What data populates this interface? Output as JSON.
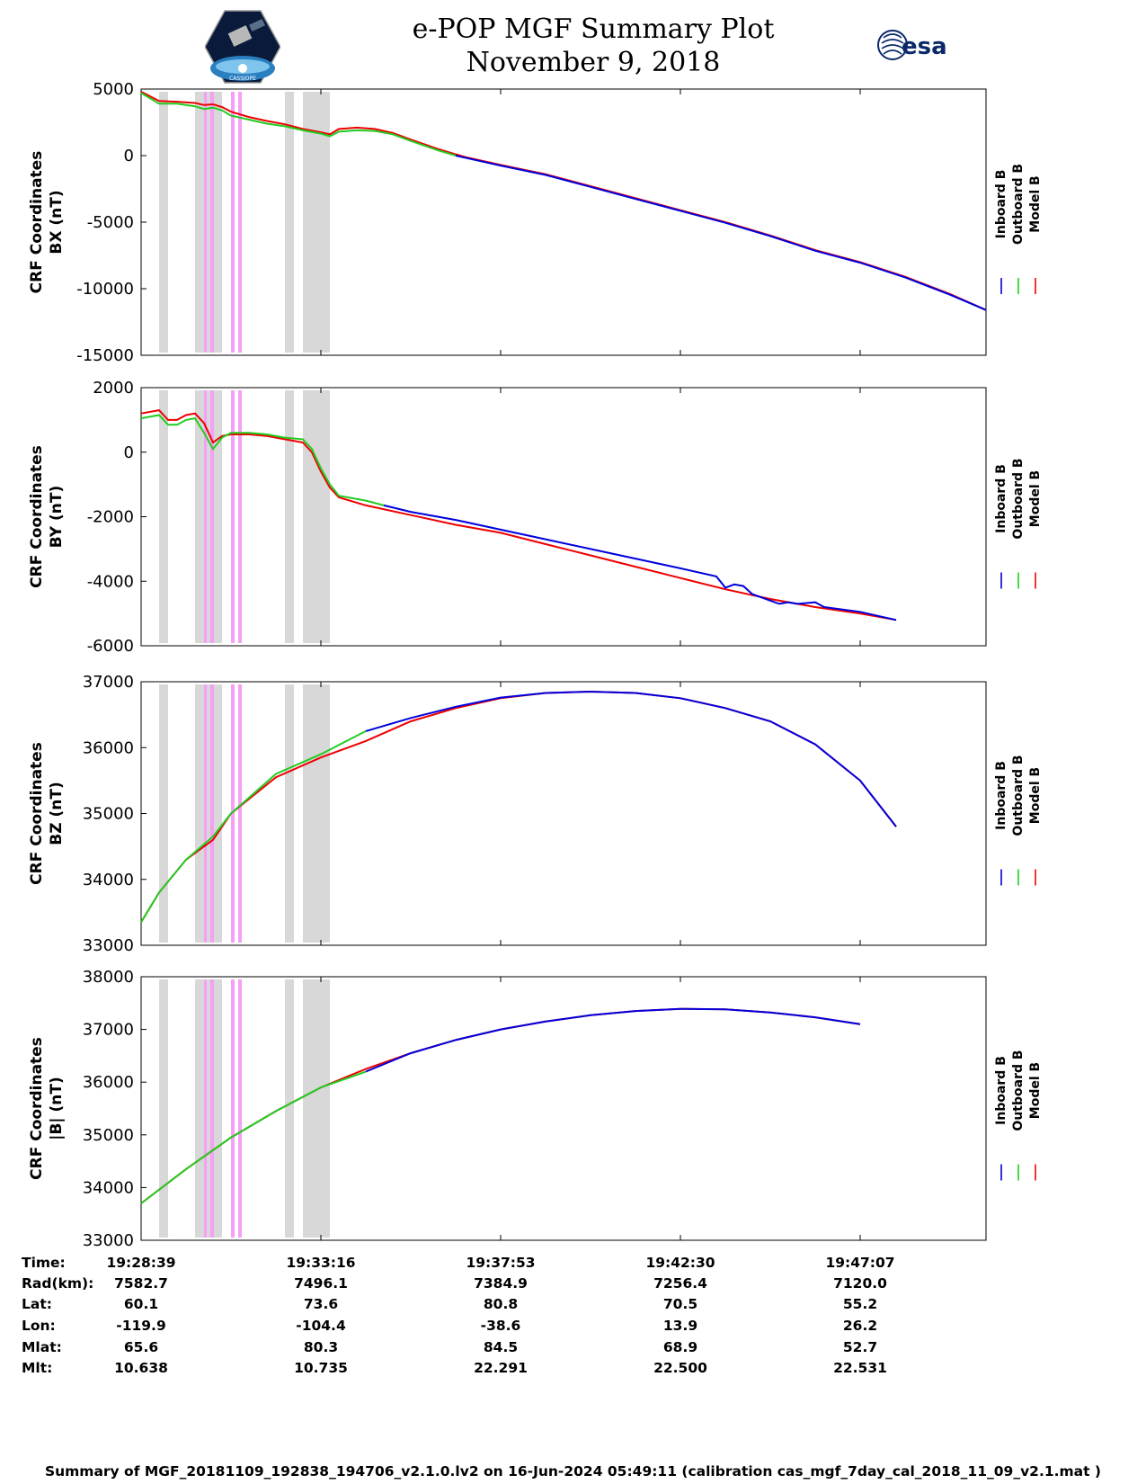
{
  "title": "e-POP MGF Summary Plot",
  "date": "November 9, 2018",
  "logo_right_text": "esa",
  "logo_left_text": "CASSIOPE",
  "colors": {
    "inboard": "#0000dd",
    "outboard": "#22cc22",
    "model": "#ee0000",
    "gap": "#d8d8d8",
    "flag": "#f5a0f5"
  },
  "chart_data": [
    {
      "type": "line",
      "ylabel": [
        "CRF Coordinates",
        "BX (nT)"
      ],
      "ylim": [
        -15000,
        5000
      ],
      "yticks": [
        5000,
        0,
        -5000,
        -10000,
        -15000
      ],
      "legend": [
        "Inboard B",
        "Outboard B",
        "Model B"
      ],
      "series": [
        {
          "name": "Model B",
          "color": "#ee0000",
          "points": [
            [
              0,
              4800
            ],
            [
              0.02,
              4100
            ],
            [
              0.04,
              4050
            ],
            [
              0.06,
              3950
            ],
            [
              0.07,
              3800
            ],
            [
              0.08,
              3850
            ],
            [
              0.09,
              3650
            ],
            [
              0.1,
              3300
            ],
            [
              0.12,
              2900
            ],
            [
              0.14,
              2600
            ],
            [
              0.16,
              2350
            ],
            [
              0.18,
              2000
            ],
            [
              0.2,
              1750
            ],
            [
              0.21,
              1600
            ],
            [
              0.22,
              2000
            ],
            [
              0.24,
              2100
            ],
            [
              0.26,
              2000
            ],
            [
              0.28,
              1700
            ],
            [
              0.3,
              1200
            ],
            [
              0.33,
              500
            ],
            [
              0.36,
              -100
            ],
            [
              0.4,
              -700
            ],
            [
              0.45,
              -1400
            ],
            [
              0.5,
              -2300
            ],
            [
              0.55,
              -3200
            ],
            [
              0.6,
              -4100
            ],
            [
              0.65,
              -5000
            ],
            [
              0.7,
              -6000
            ],
            [
              0.75,
              -7100
            ],
            [
              0.8,
              -8000
            ],
            [
              0.85,
              -9100
            ],
            [
              0.9,
              -10400
            ],
            [
              0.94,
              -11600
            ]
          ]
        },
        {
          "name": "Outboard B",
          "color": "#22cc22",
          "points": [
            [
              0,
              4700
            ],
            [
              0.02,
              3900
            ],
            [
              0.04,
              3900
            ],
            [
              0.06,
              3700
            ],
            [
              0.07,
              3500
            ],
            [
              0.08,
              3600
            ],
            [
              0.09,
              3400
            ],
            [
              0.1,
              3000
            ],
            [
              0.12,
              2700
            ],
            [
              0.14,
              2400
            ],
            [
              0.16,
              2200
            ],
            [
              0.18,
              1900
            ],
            [
              0.2,
              1650
            ],
            [
              0.21,
              1450
            ],
            [
              0.22,
              1800
            ],
            [
              0.24,
              1900
            ],
            [
              0.26,
              1850
            ],
            [
              0.28,
              1600
            ],
            [
              0.3,
              1100
            ],
            [
              0.33,
              400
            ],
            [
              0.35,
              0
            ]
          ]
        },
        {
          "name": "Inboard B",
          "color": "#0000dd",
          "points": [
            [
              0.35,
              0
            ],
            [
              0.4,
              -750
            ],
            [
              0.45,
              -1450
            ],
            [
              0.5,
              -2350
            ],
            [
              0.55,
              -3250
            ],
            [
              0.6,
              -4150
            ],
            [
              0.65,
              -5050
            ],
            [
              0.7,
              -6050
            ],
            [
              0.75,
              -7150
            ],
            [
              0.8,
              -8050
            ],
            [
              0.85,
              -9150
            ],
            [
              0.9,
              -10450
            ],
            [
              0.94,
              -11600
            ]
          ]
        }
      ]
    },
    {
      "type": "line",
      "ylabel": [
        "CRF Coordinates",
        "BY (nT)"
      ],
      "ylim": [
        -6000,
        2000
      ],
      "yticks": [
        2000,
        0,
        -2000,
        -4000,
        -6000
      ],
      "legend": [
        "Inboard B",
        "Outboard B",
        "Model B"
      ],
      "series": [
        {
          "name": "Model B",
          "color": "#ee0000",
          "points": [
            [
              0,
              1200
            ],
            [
              0.02,
              1300
            ],
            [
              0.03,
              1000
            ],
            [
              0.04,
              1000
            ],
            [
              0.05,
              1150
            ],
            [
              0.06,
              1200
            ],
            [
              0.07,
              900
            ],
            [
              0.08,
              300
            ],
            [
              0.09,
              500
            ],
            [
              0.1,
              550
            ],
            [
              0.12,
              550
            ],
            [
              0.14,
              500
            ],
            [
              0.16,
              400
            ],
            [
              0.18,
              300
            ],
            [
              0.19,
              0
            ],
            [
              0.2,
              -600
            ],
            [
              0.21,
              -1100
            ],
            [
              0.22,
              -1400
            ],
            [
              0.25,
              -1650
            ],
            [
              0.3,
              -1950
            ],
            [
              0.35,
              -2250
            ],
            [
              0.4,
              -2500
            ],
            [
              0.45,
              -2850
            ],
            [
              0.5,
              -3200
            ],
            [
              0.55,
              -3550
            ],
            [
              0.6,
              -3900
            ],
            [
              0.65,
              -4250
            ],
            [
              0.7,
              -4550
            ],
            [
              0.75,
              -4800
            ],
            [
              0.8,
              -5000
            ],
            [
              0.84,
              -5200
            ]
          ]
        },
        {
          "name": "Outboard B",
          "color": "#22cc22",
          "points": [
            [
              0,
              1050
            ],
            [
              0.02,
              1150
            ],
            [
              0.03,
              850
            ],
            [
              0.04,
              850
            ],
            [
              0.05,
              1000
            ],
            [
              0.06,
              1050
            ],
            [
              0.07,
              600
            ],
            [
              0.08,
              100
            ],
            [
              0.09,
              450
            ],
            [
              0.1,
              600
            ],
            [
              0.12,
              600
            ],
            [
              0.14,
              550
            ],
            [
              0.16,
              450
            ],
            [
              0.18,
              400
            ],
            [
              0.19,
              100
            ],
            [
              0.2,
              -500
            ],
            [
              0.21,
              -1000
            ],
            [
              0.22,
              -1350
            ],
            [
              0.25,
              -1500
            ],
            [
              0.27,
              -1650
            ]
          ]
        },
        {
          "name": "Inboard B",
          "color": "#0000dd",
          "points": [
            [
              0.27,
              -1650
            ],
            [
              0.3,
              -1850
            ],
            [
              0.35,
              -2100
            ],
            [
              0.4,
              -2400
            ],
            [
              0.45,
              -2700
            ],
            [
              0.5,
              -3000
            ],
            [
              0.55,
              -3300
            ],
            [
              0.6,
              -3600
            ],
            [
              0.64,
              -3850
            ],
            [
              0.65,
              -4200
            ],
            [
              0.66,
              -4100
            ],
            [
              0.67,
              -4150
            ],
            [
              0.68,
              -4400
            ],
            [
              0.7,
              -4600
            ],
            [
              0.71,
              -4700
            ],
            [
              0.72,
              -4650
            ],
            [
              0.73,
              -4700
            ],
            [
              0.75,
              -4650
            ],
            [
              0.76,
              -4800
            ],
            [
              0.8,
              -4950
            ],
            [
              0.84,
              -5200
            ]
          ]
        }
      ]
    },
    {
      "type": "line",
      "ylabel": [
        "CRF Coordinates",
        "BZ (nT)"
      ],
      "ylim": [
        33000,
        37000
      ],
      "yticks": [
        37000,
        36000,
        35000,
        34000,
        33000
      ],
      "legend": [
        "Inboard B",
        "Outboard B",
        "Model B"
      ],
      "series": [
        {
          "name": "Model B",
          "color": "#ee0000",
          "points": [
            [
              0,
              33350
            ],
            [
              0.02,
              33800
            ],
            [
              0.05,
              34300
            ],
            [
              0.08,
              34600
            ],
            [
              0.1,
              35000
            ],
            [
              0.15,
              35550
            ],
            [
              0.2,
              35850
            ],
            [
              0.25,
              36100
            ],
            [
              0.3,
              36400
            ],
            [
              0.35,
              36600
            ],
            [
              0.4,
              36750
            ],
            [
              0.45,
              36830
            ],
            [
              0.5,
              36850
            ],
            [
              0.55,
              36830
            ],
            [
              0.6,
              36750
            ],
            [
              0.65,
              36600
            ],
            [
              0.7,
              36400
            ],
            [
              0.75,
              36050
            ],
            [
              0.8,
              35500
            ],
            [
              0.84,
              34800
            ]
          ]
        },
        {
          "name": "Outboard B",
          "color": "#22cc22",
          "points": [
            [
              0,
              33350
            ],
            [
              0.02,
              33800
            ],
            [
              0.05,
              34300
            ],
            [
              0.08,
              34650
            ],
            [
              0.1,
              35000
            ],
            [
              0.15,
              35600
            ],
            [
              0.2,
              35900
            ],
            [
              0.25,
              36250
            ]
          ]
        },
        {
          "name": "Inboard B",
          "color": "#0000dd",
          "points": [
            [
              0.25,
              36250
            ],
            [
              0.3,
              36450
            ],
            [
              0.35,
              36620
            ],
            [
              0.4,
              36760
            ],
            [
              0.45,
              36830
            ],
            [
              0.5,
              36850
            ],
            [
              0.55,
              36830
            ],
            [
              0.6,
              36750
            ],
            [
              0.65,
              36600
            ],
            [
              0.7,
              36400
            ],
            [
              0.75,
              36050
            ],
            [
              0.8,
              35500
            ],
            [
              0.84,
              34800
            ]
          ]
        }
      ]
    },
    {
      "type": "line",
      "ylabel": [
        "CRF Coordinates",
        "|B| (nT)"
      ],
      "ylim": [
        33000,
        38000
      ],
      "yticks": [
        38000,
        37000,
        36000,
        35000,
        34000,
        33000
      ],
      "legend": [
        "Inboard B",
        "Outboard B",
        "Model B"
      ],
      "series": [
        {
          "name": "Model B",
          "color": "#ee0000",
          "points": [
            [
              0,
              33700
            ],
            [
              0.05,
              34350
            ],
            [
              0.1,
              34950
            ],
            [
              0.15,
              35450
            ],
            [
              0.2,
              35900
            ],
            [
              0.25,
              36250
            ],
            [
              0.3,
              36550
            ],
            [
              0.35,
              36800
            ],
            [
              0.4,
              37000
            ],
            [
              0.45,
              37150
            ],
            [
              0.5,
              37270
            ],
            [
              0.55,
              37350
            ],
            [
              0.6,
              37390
            ],
            [
              0.65,
              37380
            ],
            [
              0.7,
              37320
            ],
            [
              0.75,
              37230
            ],
            [
              0.8,
              37100
            ]
          ]
        },
        {
          "name": "Outboard B",
          "color": "#22cc22",
          "points": [
            [
              0,
              33700
            ],
            [
              0.05,
              34350
            ],
            [
              0.1,
              34950
            ],
            [
              0.15,
              35450
            ],
            [
              0.2,
              35900
            ],
            [
              0.25,
              36200
            ]
          ]
        },
        {
          "name": "Inboard B",
          "color": "#0000dd",
          "points": [
            [
              0.25,
              36200
            ],
            [
              0.3,
              36550
            ],
            [
              0.35,
              36800
            ],
            [
              0.4,
              37000
            ],
            [
              0.45,
              37150
            ],
            [
              0.5,
              37270
            ],
            [
              0.55,
              37350
            ],
            [
              0.6,
              37390
            ],
            [
              0.65,
              37380
            ],
            [
              0.7,
              37320
            ],
            [
              0.75,
              37230
            ],
            [
              0.8,
              37100
            ]
          ]
        }
      ]
    }
  ],
  "time_axis": {
    "xlim": [
      0,
      0.94
    ],
    "ticks": [
      0,
      0.2,
      0.4,
      0.6,
      0.8
    ]
  },
  "gap_bands": [
    [
      0.02,
      0.03
    ],
    [
      0.06,
      0.09
    ],
    [
      0.16,
      0.17
    ],
    [
      0.18,
      0.21
    ]
  ],
  "flag_bands": [
    [
      0.07,
      0.073
    ],
    [
      0.077,
      0.081
    ],
    [
      0.1,
      0.104
    ],
    [
      0.108,
      0.112
    ]
  ],
  "info": {
    "labels": [
      "Time:",
      "Rad(km):",
      "Lat:",
      "Lon:",
      "Mlat:",
      "Mlt:"
    ],
    "columns": [
      [
        "19:28:39",
        "7582.7",
        "60.1",
        "-119.9",
        "65.6",
        "10.638"
      ],
      [
        "19:33:16",
        "7496.1",
        "73.6",
        "-104.4",
        "80.3",
        "10.735"
      ],
      [
        "19:37:53",
        "7384.9",
        "80.8",
        "-38.6",
        "84.5",
        "22.291"
      ],
      [
        "19:42:30",
        "7256.4",
        "70.5",
        "13.9",
        "68.9",
        "22.500"
      ],
      [
        "19:47:07",
        "7120.0",
        "55.2",
        "26.2",
        "52.7",
        "22.531"
      ]
    ]
  },
  "footer": "Summary of MGF_20181109_192838_194706_v2.1.0.lv2 on 16-Jun-2024 05:49:11 (calibration cas_mgf_7day_cal_2018_11_09_v2.1.mat )"
}
